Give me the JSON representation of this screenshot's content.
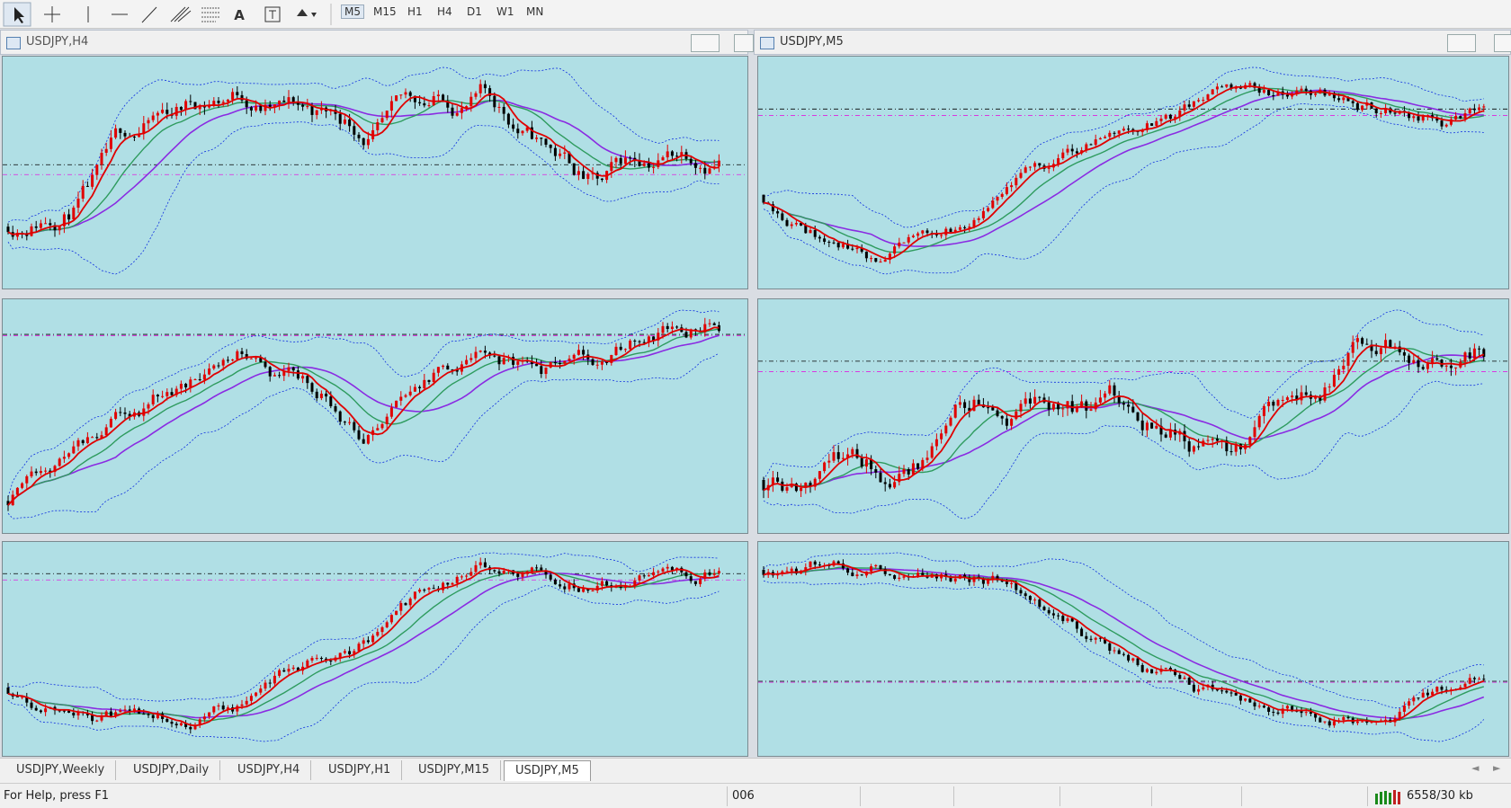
{
  "toolbar": {
    "text_tool": "A",
    "timeframes": [
      "M5",
      "M15",
      "H1",
      "H4",
      "D1",
      "W1",
      "MN"
    ]
  },
  "windows": [
    {
      "title": "USDJPY,H4"
    },
    {
      "title": "USDJPY,M5"
    }
  ],
  "tabs": [
    "USDJPY,Weekly",
    "USDJPY,Daily",
    "USDJPY,H4",
    "USDJPY,H1",
    "USDJPY,M15",
    "USDJPY,M5"
  ],
  "status": {
    "help": "For Help, press F1",
    "code": "006",
    "traffic": "6558/30 kb"
  }
}
